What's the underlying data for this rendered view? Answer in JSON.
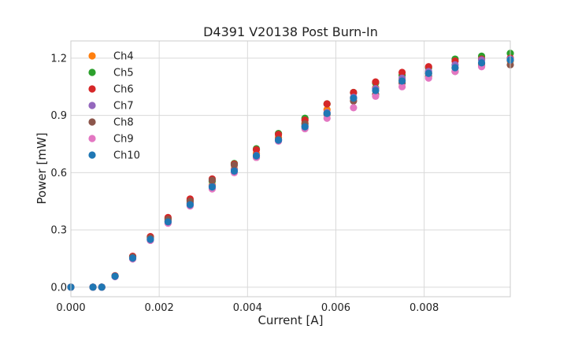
{
  "chart_data": {
    "type": "scatter",
    "title": "D4391 V20138 Post Burn-In",
    "xlabel": "Current [A]",
    "ylabel": "Power [mW]",
    "xlim": [
      0,
      0.00995
    ],
    "ylim": [
      -0.05,
      1.29
    ],
    "x_ticks": [
      0.0,
      0.002,
      0.004,
      0.006,
      0.008
    ],
    "x_tick_labels": [
      "0.000",
      "0.002",
      "0.004",
      "0.006",
      "0.008"
    ],
    "y_ticks": [
      0.0,
      0.3,
      0.6,
      0.9,
      1.2
    ],
    "y_tick_labels": [
      "0.0",
      "0.3",
      "0.6",
      "0.9",
      "1.2"
    ],
    "grid": true,
    "legend_position": "top-left",
    "series": [
      {
        "name": "Ch4",
        "color": "#ff7f0e",
        "x": [
          0.0,
          0.0005,
          0.0007,
          0.001,
          0.0014,
          0.0018,
          0.0022,
          0.0027,
          0.0032,
          0.0037,
          0.0042,
          0.0047,
          0.0053,
          0.0058,
          0.0064,
          0.0069,
          0.0075,
          0.0081,
          0.0087,
          0.0093,
          0.00995
        ],
        "y": [
          0.0,
          0.0,
          0.0,
          0.058,
          0.155,
          0.255,
          0.35,
          0.44,
          0.535,
          0.62,
          0.7,
          0.785,
          0.86,
          0.93,
          0.99,
          1.045,
          1.085,
          1.12,
          1.15,
          1.17,
          1.185
        ]
      },
      {
        "name": "Ch5",
        "color": "#2ca02c",
        "x": [
          0.0,
          0.0005,
          0.0007,
          0.001,
          0.0014,
          0.0018,
          0.0022,
          0.0027,
          0.0032,
          0.0037,
          0.0042,
          0.0047,
          0.0053,
          0.0058,
          0.0064,
          0.0069,
          0.0075,
          0.0081,
          0.0087,
          0.0093,
          0.00995
        ],
        "y": [
          0.0,
          0.0,
          0.0,
          0.058,
          0.16,
          0.262,
          0.36,
          0.455,
          0.555,
          0.648,
          0.725,
          0.805,
          0.885,
          0.96,
          1.02,
          1.07,
          1.11,
          1.15,
          1.195,
          1.21,
          1.225
        ]
      },
      {
        "name": "Ch6",
        "color": "#d62728",
        "x": [
          0.0,
          0.0005,
          0.0007,
          0.001,
          0.0014,
          0.0018,
          0.0022,
          0.0027,
          0.0032,
          0.0037,
          0.0042,
          0.0047,
          0.0053,
          0.0058,
          0.0064,
          0.0069,
          0.0075,
          0.0081,
          0.0087,
          0.0093,
          0.00995
        ],
        "y": [
          0.0,
          0.0,
          0.0,
          0.06,
          0.162,
          0.265,
          0.365,
          0.462,
          0.567,
          0.645,
          0.72,
          0.8,
          0.875,
          0.96,
          1.02,
          1.075,
          1.125,
          1.155,
          1.185,
          1.195,
          1.2
        ]
      },
      {
        "name": "Ch7",
        "color": "#9467bd",
        "x": [
          0.0,
          0.0005,
          0.0007,
          0.001,
          0.0014,
          0.0018,
          0.0022,
          0.0027,
          0.0032,
          0.0037,
          0.0042,
          0.0047,
          0.0053,
          0.0058,
          0.0064,
          0.0069,
          0.0075,
          0.0081,
          0.0087,
          0.0093,
          0.00995
        ],
        "y": [
          0.0,
          0.0,
          0.0,
          0.057,
          0.152,
          0.25,
          0.345,
          0.44,
          0.53,
          0.615,
          0.69,
          0.77,
          0.845,
          0.915,
          0.995,
          1.04,
          1.095,
          1.13,
          1.165,
          1.19,
          1.195
        ]
      },
      {
        "name": "Ch8",
        "color": "#8c564b",
        "x": [
          0.0,
          0.0005,
          0.0007,
          0.001,
          0.0014,
          0.0018,
          0.0022,
          0.0027,
          0.0032,
          0.0037,
          0.0042,
          0.0047,
          0.0053,
          0.0058,
          0.0064,
          0.0069,
          0.0075,
          0.0081,
          0.0087,
          0.0093,
          0.00995
        ],
        "y": [
          0.0,
          0.0,
          0.0,
          0.058,
          0.158,
          0.258,
          0.355,
          0.45,
          0.56,
          0.64,
          0.68,
          0.775,
          0.855,
          0.905,
          0.975,
          1.01,
          1.07,
          1.105,
          1.13,
          1.16,
          1.165
        ]
      },
      {
        "name": "Ch9",
        "color": "#e377c2",
        "x": [
          0.0,
          0.0005,
          0.0007,
          0.001,
          0.0014,
          0.0018,
          0.0022,
          0.0027,
          0.0032,
          0.0037,
          0.0042,
          0.0047,
          0.0053,
          0.0058,
          0.0064,
          0.0069,
          0.0075,
          0.0081,
          0.0087,
          0.0093,
          0.00995
        ],
        "y": [
          0.0,
          0.0,
          0.0,
          0.055,
          0.148,
          0.245,
          0.335,
          0.425,
          0.515,
          0.6,
          0.68,
          0.765,
          0.83,
          0.885,
          0.94,
          1.0,
          1.05,
          1.095,
          1.13,
          1.155,
          1.19
        ]
      },
      {
        "name": "Ch10",
        "color": "#1f77b4",
        "x": [
          0.0,
          0.0005,
          0.0007,
          0.001,
          0.0014,
          0.0018,
          0.0022,
          0.0027,
          0.0032,
          0.0037,
          0.0042,
          0.0047,
          0.0053,
          0.0058,
          0.0064,
          0.0069,
          0.0075,
          0.0081,
          0.0087,
          0.0093,
          0.00995
        ],
        "y": [
          0.0,
          0.0,
          0.0,
          0.057,
          0.152,
          0.25,
          0.342,
          0.432,
          0.525,
          0.608,
          0.688,
          0.77,
          0.84,
          0.91,
          0.99,
          1.03,
          1.08,
          1.12,
          1.15,
          1.175,
          1.19
        ]
      }
    ]
  }
}
